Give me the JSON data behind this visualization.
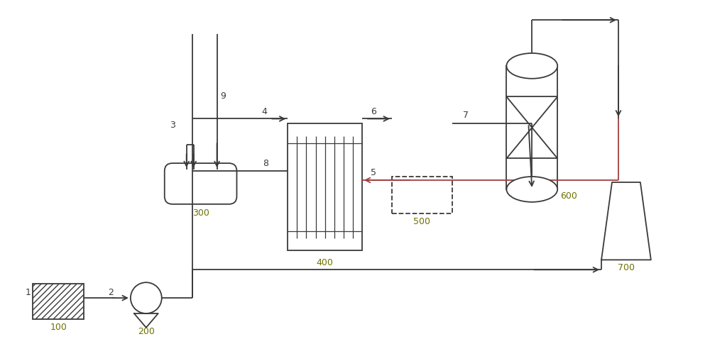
{
  "bg_color": "#ffffff",
  "lc": "#3a3a3a",
  "plc": "#a04040",
  "label_color": "#707000",
  "stream_color": "#3a3a3a",
  "figsize": [
    10.0,
    5.1
  ],
  "dpi": 100
}
